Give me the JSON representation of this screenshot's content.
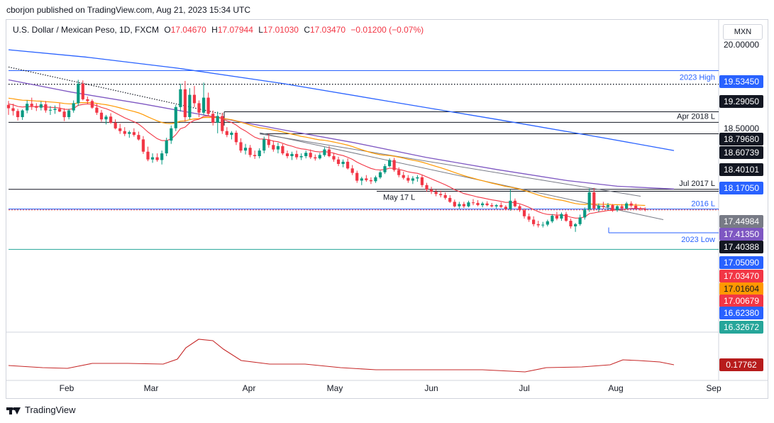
{
  "header": {
    "published": "cborjon published on TradingView.com, Aug 21, 2023 15:34 UTC"
  },
  "legend": {
    "symbol": "U.S. Dollar / Mexican Peso, 1D, FXCM",
    "o_label": "O",
    "o_value": "17.04670",
    "h_label": "H",
    "h_value": "17.07944",
    "l_label": "L",
    "l_value": "17.01030",
    "c_label": "C",
    "c_value": "17.03470",
    "change": "−0.01200 (−0.07%)"
  },
  "currency_button": "MXN",
  "footer": {
    "brand": "TradingView"
  },
  "colors": {
    "up": "#089981",
    "down": "#f23645",
    "ema20": "#f23645",
    "ema50": "#ff9800",
    "ema100": "#7e57c2",
    "ema200": "#2962ff",
    "line_gray": "#787b86",
    "blue_label": "#2962ff",
    "teal_line": "#26a69a"
  },
  "chart_data": {
    "type": "candlestick",
    "x_axis_labels": [
      "Feb",
      "Mar",
      "Apr",
      "May",
      "Jun",
      "Jul",
      "Aug",
      "Sep"
    ],
    "y_axis_ticks": [
      "20.00000",
      "19.00000",
      "18.50000",
      "18.00000",
      "16.50000"
    ],
    "y_range": [
      16.2,
      20.2
    ],
    "price_labels": [
      {
        "value": 19.5345,
        "label": "19.53450",
        "bg": "#2962ff",
        "fg": "#ffffff"
      },
      {
        "value": 19.2905,
        "label": "19.29050",
        "bg": "#131722",
        "fg": "#ffffff"
      },
      {
        "value": 18.7968,
        "label": "18.79680",
        "bg": "#131722",
        "fg": "#ffffff"
      },
      {
        "value": 18.60739,
        "label": "18.60739",
        "bg": "#131722",
        "fg": "#ffffff"
      },
      {
        "value": 18.40101,
        "label": "18.40101",
        "bg": "#131722",
        "fg": "#ffffff"
      },
      {
        "value": 18.1705,
        "label": "18.17050",
        "bg": "#2962ff",
        "fg": "#ffffff"
      },
      {
        "value": 17.44984,
        "label": "17.44984",
        "bg": "#787b86",
        "fg": "#ffffff"
      },
      {
        "value": 17.4135,
        "label": "17.41350",
        "bg": "#7e57c2",
        "fg": "#ffffff"
      },
      {
        "value": 17.40388,
        "label": "17.40388",
        "bg": "#131722",
        "fg": "#ffffff"
      },
      {
        "value": 17.0509,
        "label": "17.05090",
        "bg": "#2962ff",
        "fg": "#ffffff"
      },
      {
        "value": 17.0347,
        "label": "17.03470",
        "bg": "#f23645",
        "fg": "#ffffff"
      },
      {
        "value": 17.01604,
        "label": "17.01604",
        "bg": "#ff9800",
        "fg": "#131722"
      },
      {
        "value": 17.00679,
        "label": "17.00679",
        "bg": "#f23645",
        "fg": "#ffffff"
      },
      {
        "value": 16.6238,
        "label": "16.62380",
        "bg": "#2962ff",
        "fg": "#ffffff"
      },
      {
        "value": 16.32672,
        "label": "16.32672",
        "bg": "#26a69a",
        "fg": "#ffffff"
      }
    ],
    "annotations": [
      "2023 High",
      "Apr 2018 L",
      "Jul 2017 L",
      "May 17 L",
      "2016 L",
      "2023 Low"
    ],
    "ohlc": [
      [
        18.92,
        18.99,
        18.74,
        18.86
      ],
      [
        18.86,
        18.94,
        18.73,
        18.81
      ],
      [
        18.81,
        18.85,
        18.64,
        18.7
      ],
      [
        18.7,
        18.84,
        18.65,
        18.82
      ],
      [
        18.82,
        19.0,
        18.77,
        18.94
      ],
      [
        18.94,
        19.05,
        18.83,
        18.9
      ],
      [
        18.9,
        18.95,
        18.81,
        18.87
      ],
      [
        18.87,
        18.98,
        18.82,
        18.93
      ],
      [
        18.93,
        18.99,
        18.78,
        18.82
      ],
      [
        18.82,
        18.9,
        18.74,
        18.83
      ],
      [
        18.83,
        18.91,
        18.76,
        18.85
      ],
      [
        18.85,
        18.95,
        18.79,
        18.8
      ],
      [
        18.8,
        18.86,
        18.63,
        18.7
      ],
      [
        18.7,
        18.85,
        18.66,
        18.82
      ],
      [
        18.82,
        19.0,
        18.78,
        18.95
      ],
      [
        18.95,
        19.37,
        18.9,
        19.3
      ],
      [
        19.3,
        19.36,
        19.0,
        19.02
      ],
      [
        19.02,
        19.07,
        18.93,
        18.99
      ],
      [
        18.99,
        19.02,
        18.85,
        18.87
      ],
      [
        18.87,
        18.94,
        18.74,
        18.78
      ],
      [
        18.78,
        18.83,
        18.62,
        18.66
      ],
      [
        18.66,
        18.74,
        18.57,
        18.71
      ],
      [
        18.71,
        18.77,
        18.58,
        18.6
      ],
      [
        18.6,
        18.66,
        18.48,
        18.5
      ],
      [
        18.5,
        18.58,
        18.4,
        18.45
      ],
      [
        18.45,
        18.52,
        18.36,
        18.4
      ],
      [
        18.4,
        18.46,
        18.33,
        18.43
      ],
      [
        18.43,
        18.5,
        18.35,
        18.38
      ],
      [
        18.38,
        18.44,
        18.28,
        18.3
      ],
      [
        18.3,
        18.36,
        18.04,
        18.08
      ],
      [
        18.08,
        18.17,
        17.91,
        17.94
      ],
      [
        17.94,
        18.05,
        17.88,
        17.98
      ],
      [
        17.98,
        18.05,
        17.9,
        17.93
      ],
      [
        17.93,
        18.1,
        17.85,
        18.05
      ],
      [
        18.05,
        18.33,
        18.0,
        18.28
      ],
      [
        18.28,
        18.55,
        18.22,
        18.5
      ],
      [
        18.5,
        18.92,
        18.45,
        18.88
      ],
      [
        18.88,
        19.3,
        18.8,
        19.2
      ],
      [
        19.2,
        19.35,
        18.62,
        18.7
      ],
      [
        18.7,
        19.22,
        18.66,
        19.1
      ],
      [
        19.1,
        19.26,
        18.88,
        18.95
      ],
      [
        18.95,
        19.0,
        18.7,
        18.78
      ],
      [
        18.78,
        19.32,
        18.74,
        19.05
      ],
      [
        19.05,
        19.14,
        18.72,
        18.76
      ],
      [
        18.76,
        18.82,
        18.55,
        18.6
      ],
      [
        18.6,
        18.8,
        18.41,
        18.72
      ],
      [
        18.72,
        18.78,
        18.4,
        18.45
      ],
      [
        18.45,
        18.52,
        18.34,
        18.38
      ],
      [
        18.38,
        18.45,
        18.3,
        18.42
      ],
      [
        18.42,
        18.46,
        18.2,
        18.25
      ],
      [
        18.25,
        18.32,
        18.06,
        18.1
      ],
      [
        18.1,
        18.22,
        18.03,
        18.15
      ],
      [
        18.15,
        18.2,
        17.98,
        18.02
      ],
      [
        18.02,
        18.1,
        17.95,
        18.0
      ],
      [
        18.0,
        18.14,
        17.96,
        18.1
      ],
      [
        18.1,
        18.35,
        18.05,
        18.3
      ],
      [
        18.3,
        18.4,
        18.15,
        18.2
      ],
      [
        18.2,
        18.28,
        18.08,
        18.12
      ],
      [
        18.12,
        18.24,
        18.05,
        18.18
      ],
      [
        18.18,
        18.22,
        18.02,
        18.05
      ],
      [
        18.05,
        18.1,
        17.96,
        18.0
      ],
      [
        18.0,
        18.08,
        17.93,
        18.04
      ],
      [
        18.04,
        18.1,
        17.94,
        17.98
      ],
      [
        17.98,
        18.05,
        17.93,
        18.0
      ],
      [
        18.0,
        18.1,
        17.96,
        18.06
      ],
      [
        18.06,
        18.12,
        17.95,
        17.98
      ],
      [
        17.98,
        18.03,
        17.92,
        17.96
      ],
      [
        17.96,
        18.06,
        17.94,
        18.02
      ],
      [
        18.02,
        18.16,
        17.99,
        18.12
      ],
      [
        18.12,
        18.18,
        17.98,
        18.0
      ],
      [
        18.0,
        18.06,
        17.9,
        17.94
      ],
      [
        17.94,
        17.99,
        17.82,
        17.86
      ],
      [
        17.86,
        17.94,
        17.8,
        17.9
      ],
      [
        17.9,
        17.96,
        17.76,
        17.78
      ],
      [
        17.78,
        17.84,
        17.66,
        17.7
      ],
      [
        17.7,
        17.74,
        17.52,
        17.56
      ],
      [
        17.56,
        17.63,
        17.48,
        17.6
      ],
      [
        17.6,
        17.66,
        17.54,
        17.57
      ],
      [
        17.57,
        17.62,
        17.5,
        17.55
      ],
      [
        17.55,
        17.65,
        17.52,
        17.62
      ],
      [
        17.62,
        17.74,
        17.59,
        17.71
      ],
      [
        17.71,
        17.86,
        17.68,
        17.82
      ],
      [
        17.82,
        17.96,
        17.8,
        17.93
      ],
      [
        17.93,
        17.97,
        17.72,
        17.75
      ],
      [
        17.75,
        17.8,
        17.62,
        17.66
      ],
      [
        17.66,
        17.72,
        17.58,
        17.61
      ],
      [
        17.61,
        17.66,
        17.52,
        17.56
      ],
      [
        17.56,
        17.64,
        17.5,
        17.6
      ],
      [
        17.6,
        17.66,
        17.54,
        17.62
      ],
      [
        17.62,
        17.66,
        17.44,
        17.48
      ],
      [
        17.48,
        17.52,
        17.36,
        17.4
      ],
      [
        17.4,
        17.45,
        17.32,
        17.36
      ],
      [
        17.36,
        17.4,
        17.28,
        17.32
      ],
      [
        17.32,
        17.38,
        17.26,
        17.3
      ],
      [
        17.3,
        17.35,
        17.22,
        17.25
      ],
      [
        17.25,
        17.3,
        17.16,
        17.18
      ],
      [
        17.18,
        17.22,
        17.08,
        17.1
      ],
      [
        17.1,
        17.18,
        17.06,
        17.14
      ],
      [
        17.14,
        17.18,
        17.07,
        17.1
      ],
      [
        17.1,
        17.2,
        17.08,
        17.17
      ],
      [
        17.17,
        17.23,
        17.12,
        17.16
      ],
      [
        17.16,
        17.21,
        17.1,
        17.12
      ],
      [
        17.12,
        17.18,
        17.08,
        17.15
      ],
      [
        17.15,
        17.19,
        17.1,
        17.12
      ],
      [
        17.12,
        17.16,
        17.08,
        17.1
      ],
      [
        17.1,
        17.14,
        17.06,
        17.12
      ],
      [
        17.12,
        17.17,
        17.07,
        17.09
      ],
      [
        17.09,
        17.12,
        17.03,
        17.05
      ],
      [
        17.05,
        17.4,
        17.02,
        17.2
      ],
      [
        17.2,
        17.24,
        17.08,
        17.1
      ],
      [
        17.1,
        17.13,
        17.0,
        17.03
      ],
      [
        17.03,
        17.06,
        16.88,
        16.92
      ],
      [
        16.92,
        16.97,
        16.82,
        16.86
      ],
      [
        16.86,
        16.92,
        16.74,
        16.78
      ],
      [
        16.78,
        16.84,
        16.72,
        16.76
      ],
      [
        16.76,
        16.82,
        16.72,
        16.77
      ],
      [
        16.77,
        16.86,
        16.74,
        16.83
      ],
      [
        16.83,
        16.96,
        16.8,
        16.93
      ],
      [
        16.93,
        17.0,
        16.85,
        16.88
      ],
      [
        16.88,
        16.99,
        16.84,
        16.96
      ],
      [
        16.96,
        17.0,
        16.82,
        16.84
      ],
      [
        16.84,
        16.88,
        16.7,
        16.74
      ],
      [
        16.74,
        16.8,
        16.64,
        16.78
      ],
      [
        16.78,
        16.95,
        16.75,
        16.9
      ],
      [
        16.9,
        17.08,
        16.86,
        17.04
      ],
      [
        17.04,
        17.42,
        17.0,
        17.35
      ],
      [
        17.35,
        17.43,
        17.02,
        17.06
      ],
      [
        17.06,
        17.15,
        17.0,
        17.11
      ],
      [
        17.11,
        17.18,
        17.05,
        17.09
      ],
      [
        17.09,
        17.16,
        17.03,
        17.12
      ],
      [
        17.12,
        17.14,
        17.0,
        17.03
      ],
      [
        17.03,
        17.12,
        17.0,
        17.1
      ],
      [
        17.1,
        17.14,
        17.03,
        17.06
      ],
      [
        17.06,
        17.18,
        17.04,
        17.15
      ],
      [
        17.15,
        17.19,
        17.08,
        17.11
      ],
      [
        17.11,
        17.15,
        17.03,
        17.06
      ],
      [
        17.06,
        17.09,
        17.02,
        17.05
      ],
      [
        17.0467,
        17.07944,
        17.0103,
        17.0347
      ]
    ],
    "indicator": {
      "last_value": "0.17762"
    }
  }
}
